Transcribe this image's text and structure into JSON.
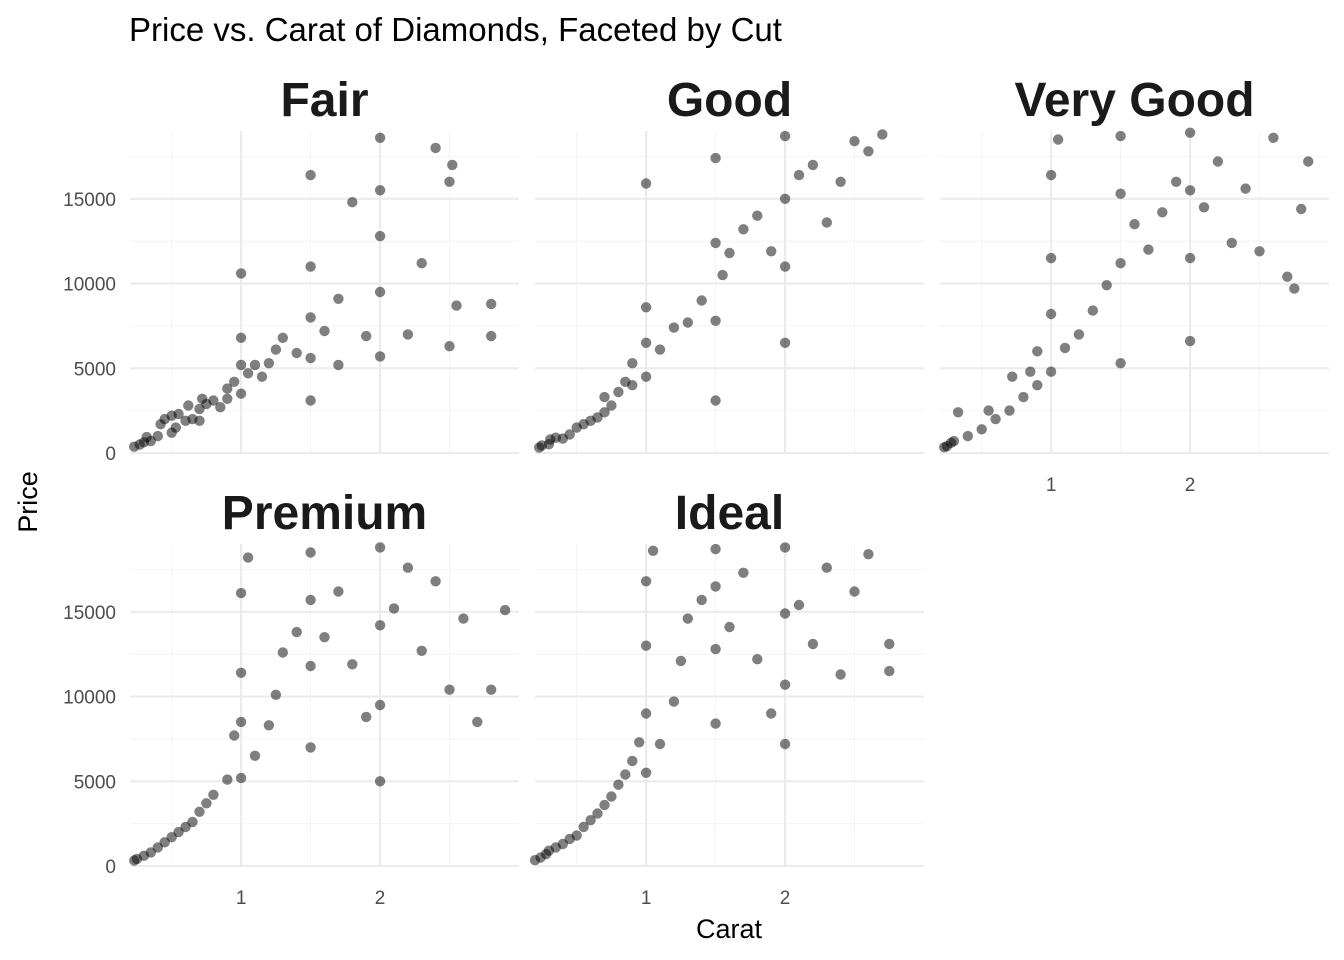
{
  "chart_data": {
    "type": "scatter",
    "title": "Price vs. Carat of Diamonds, Faceted by Cut",
    "xlabel": "Carat",
    "ylabel": "Price",
    "xlim": [
      0.2,
      3.0
    ],
    "ylim": [
      0,
      19000
    ],
    "x_ticks": [
      1,
      2
    ],
    "x_tick_labels": [
      "1",
      "2"
    ],
    "y_ticks": [
      0,
      5000,
      10000,
      15000
    ],
    "y_tick_labels": [
      "0",
      "5000",
      "10000",
      "15000"
    ],
    "grid": true,
    "point_color": "#000000",
    "point_opacity": 0.5,
    "facets": [
      {
        "label": "Fair",
        "points": [
          [
            0.23,
            369
          ],
          [
            0.27,
            500
          ],
          [
            0.3,
            630
          ],
          [
            0.32,
            940
          ],
          [
            0.35,
            700
          ],
          [
            0.4,
            1000
          ],
          [
            0.42,
            1700
          ],
          [
            0.45,
            2000
          ],
          [
            0.5,
            1200
          ],
          [
            0.5,
            2200
          ],
          [
            0.53,
            1500
          ],
          [
            0.55,
            2300
          ],
          [
            0.6,
            1900
          ],
          [
            0.62,
            2800
          ],
          [
            0.65,
            2000
          ],
          [
            0.7,
            1900
          ],
          [
            0.7,
            2600
          ],
          [
            0.72,
            3200
          ],
          [
            0.75,
            2900
          ],
          [
            0.8,
            3100
          ],
          [
            0.85,
            2700
          ],
          [
            0.9,
            3200
          ],
          [
            0.9,
            3800
          ],
          [
            0.95,
            4200
          ],
          [
            1.0,
            3500
          ],
          [
            1.0,
            5200
          ],
          [
            1.0,
            6800
          ],
          [
            1.0,
            10600
          ],
          [
            1.05,
            4700
          ],
          [
            1.1,
            5200
          ],
          [
            1.15,
            4500
          ],
          [
            1.2,
            5300
          ],
          [
            1.25,
            6100
          ],
          [
            1.3,
            6800
          ],
          [
            1.4,
            5900
          ],
          [
            1.5,
            3100
          ],
          [
            1.5,
            5600
          ],
          [
            1.5,
            8000
          ],
          [
            1.5,
            11000
          ],
          [
            1.5,
            16400
          ],
          [
            1.6,
            7200
          ],
          [
            1.7,
            9100
          ],
          [
            1.7,
            5200
          ],
          [
            1.8,
            14800
          ],
          [
            1.9,
            6900
          ],
          [
            2.0,
            5700
          ],
          [
            2.0,
            9500
          ],
          [
            2.0,
            12800
          ],
          [
            2.0,
            15500
          ],
          [
            2.0,
            18600
          ],
          [
            2.2,
            7000
          ],
          [
            2.3,
            11200
          ],
          [
            2.4,
            18000
          ],
          [
            2.5,
            6300
          ],
          [
            2.5,
            16000
          ],
          [
            2.52,
            17000
          ],
          [
            2.55,
            8700
          ],
          [
            2.8,
            8800
          ],
          [
            2.8,
            6900
          ]
        ]
      },
      {
        "label": "Good",
        "points": [
          [
            0.23,
            327
          ],
          [
            0.25,
            450
          ],
          [
            0.3,
            520
          ],
          [
            0.31,
            800
          ],
          [
            0.35,
            900
          ],
          [
            0.4,
            850
          ],
          [
            0.45,
            1100
          ],
          [
            0.5,
            1500
          ],
          [
            0.55,
            1700
          ],
          [
            0.6,
            1900
          ],
          [
            0.65,
            2100
          ],
          [
            0.7,
            2400
          ],
          [
            0.7,
            3300
          ],
          [
            0.75,
            2800
          ],
          [
            0.8,
            3600
          ],
          [
            0.85,
            4200
          ],
          [
            0.9,
            4000
          ],
          [
            0.9,
            5300
          ],
          [
            1.0,
            4500
          ],
          [
            1.0,
            6500
          ],
          [
            1.0,
            8600
          ],
          [
            1.0,
            15900
          ],
          [
            1.1,
            6100
          ],
          [
            1.2,
            7400
          ],
          [
            1.3,
            7700
          ],
          [
            1.4,
            9000
          ],
          [
            1.5,
            3100
          ],
          [
            1.5,
            7800
          ],
          [
            1.5,
            12400
          ],
          [
            1.5,
            17400
          ],
          [
            1.55,
            10500
          ],
          [
            1.6,
            11800
          ],
          [
            1.7,
            13200
          ],
          [
            1.8,
            14000
          ],
          [
            1.9,
            11900
          ],
          [
            2.0,
            6500
          ],
          [
            2.0,
            11000
          ],
          [
            2.0,
            15000
          ],
          [
            2.0,
            18700
          ],
          [
            2.1,
            16400
          ],
          [
            2.2,
            17000
          ],
          [
            2.3,
            13600
          ],
          [
            2.4,
            16000
          ],
          [
            2.5,
            18400
          ],
          [
            2.6,
            17800
          ],
          [
            2.7,
            18800
          ]
        ]
      },
      {
        "label": "Very Good",
        "points": [
          [
            0.23,
            336
          ],
          [
            0.25,
            400
          ],
          [
            0.28,
            600
          ],
          [
            0.3,
            700
          ],
          [
            0.33,
            2400
          ],
          [
            0.4,
            1000
          ],
          [
            0.5,
            1400
          ],
          [
            0.55,
            2500
          ],
          [
            0.6,
            2000
          ],
          [
            0.7,
            2500
          ],
          [
            0.72,
            4500
          ],
          [
            0.8,
            3300
          ],
          [
            0.85,
            4800
          ],
          [
            0.9,
            4000
          ],
          [
            0.9,
            6000
          ],
          [
            1.0,
            4800
          ],
          [
            1.0,
            8200
          ],
          [
            1.0,
            11500
          ],
          [
            1.0,
            16400
          ],
          [
            1.05,
            18500
          ],
          [
            1.1,
            6200
          ],
          [
            1.2,
            7000
          ],
          [
            1.3,
            8400
          ],
          [
            1.4,
            9900
          ],
          [
            1.5,
            5300
          ],
          [
            1.5,
            11200
          ],
          [
            1.5,
            15300
          ],
          [
            1.5,
            18700
          ],
          [
            1.6,
            13500
          ],
          [
            1.7,
            12000
          ],
          [
            1.8,
            14200
          ],
          [
            1.9,
            16000
          ],
          [
            2.0,
            6600
          ],
          [
            2.0,
            11500
          ],
          [
            2.0,
            15500
          ],
          [
            2.0,
            18900
          ],
          [
            2.1,
            14500
          ],
          [
            2.2,
            17200
          ],
          [
            2.3,
            12400
          ],
          [
            2.4,
            15600
          ],
          [
            2.5,
            11900
          ],
          [
            2.6,
            18600
          ],
          [
            2.7,
            10400
          ],
          [
            2.75,
            9700
          ],
          [
            2.8,
            14400
          ],
          [
            2.85,
            17200
          ]
        ]
      },
      {
        "label": "Premium",
        "points": [
          [
            0.23,
            326
          ],
          [
            0.25,
            420
          ],
          [
            0.3,
            600
          ],
          [
            0.35,
            800
          ],
          [
            0.4,
            1100
          ],
          [
            0.45,
            1400
          ],
          [
            0.5,
            1700
          ],
          [
            0.55,
            2000
          ],
          [
            0.6,
            2300
          ],
          [
            0.65,
            2600
          ],
          [
            0.7,
            3200
          ],
          [
            0.75,
            3700
          ],
          [
            0.8,
            4200
          ],
          [
            0.9,
            5100
          ],
          [
            0.95,
            7700
          ],
          [
            1.0,
            5200
          ],
          [
            1.0,
            8500
          ],
          [
            1.0,
            11400
          ],
          [
            1.0,
            16100
          ],
          [
            1.05,
            18200
          ],
          [
            1.1,
            6500
          ],
          [
            1.2,
            8300
          ],
          [
            1.25,
            10100
          ],
          [
            1.3,
            12600
          ],
          [
            1.4,
            13800
          ],
          [
            1.5,
            7000
          ],
          [
            1.5,
            11800
          ],
          [
            1.5,
            15700
          ],
          [
            1.5,
            18500
          ],
          [
            1.6,
            13500
          ],
          [
            1.7,
            16200
          ],
          [
            1.8,
            11900
          ],
          [
            1.9,
            8800
          ],
          [
            2.0,
            5000
          ],
          [
            2.0,
            9500
          ],
          [
            2.0,
            14200
          ],
          [
            2.0,
            18800
          ],
          [
            2.1,
            15200
          ],
          [
            2.2,
            17600
          ],
          [
            2.3,
            12700
          ],
          [
            2.4,
            16800
          ],
          [
            2.5,
            10400
          ],
          [
            2.6,
            14600
          ],
          [
            2.7,
            8500
          ],
          [
            2.8,
            10400
          ],
          [
            2.9,
            15100
          ]
        ]
      },
      {
        "label": "Ideal",
        "points": [
          [
            0.2,
            340
          ],
          [
            0.24,
            500
          ],
          [
            0.28,
            700
          ],
          [
            0.3,
            900
          ],
          [
            0.35,
            1100
          ],
          [
            0.4,
            1300
          ],
          [
            0.45,
            1600
          ],
          [
            0.5,
            1800
          ],
          [
            0.55,
            2300
          ],
          [
            0.6,
            2700
          ],
          [
            0.65,
            3100
          ],
          [
            0.7,
            3600
          ],
          [
            0.75,
            4100
          ],
          [
            0.8,
            4800
          ],
          [
            0.85,
            5400
          ],
          [
            0.9,
            6200
          ],
          [
            0.95,
            7300
          ],
          [
            1.0,
            5500
          ],
          [
            1.0,
            9000
          ],
          [
            1.0,
            13000
          ],
          [
            1.0,
            16800
          ],
          [
            1.05,
            18600
          ],
          [
            1.1,
            7200
          ],
          [
            1.2,
            9700
          ],
          [
            1.25,
            12100
          ],
          [
            1.3,
            14600
          ],
          [
            1.4,
            15700
          ],
          [
            1.5,
            8400
          ],
          [
            1.5,
            12800
          ],
          [
            1.5,
            16500
          ],
          [
            1.5,
            18700
          ],
          [
            1.6,
            14100
          ],
          [
            1.7,
            17300
          ],
          [
            1.8,
            12200
          ],
          [
            1.9,
            9000
          ],
          [
            2.0,
            7200
          ],
          [
            2.0,
            10700
          ],
          [
            2.0,
            14900
          ],
          [
            2.0,
            18800
          ],
          [
            2.1,
            15400
          ],
          [
            2.2,
            13100
          ],
          [
            2.3,
            17600
          ],
          [
            2.4,
            11300
          ],
          [
            2.5,
            16200
          ],
          [
            2.6,
            18400
          ],
          [
            2.75,
            13100
          ],
          [
            2.75,
            11500
          ]
        ]
      }
    ]
  }
}
